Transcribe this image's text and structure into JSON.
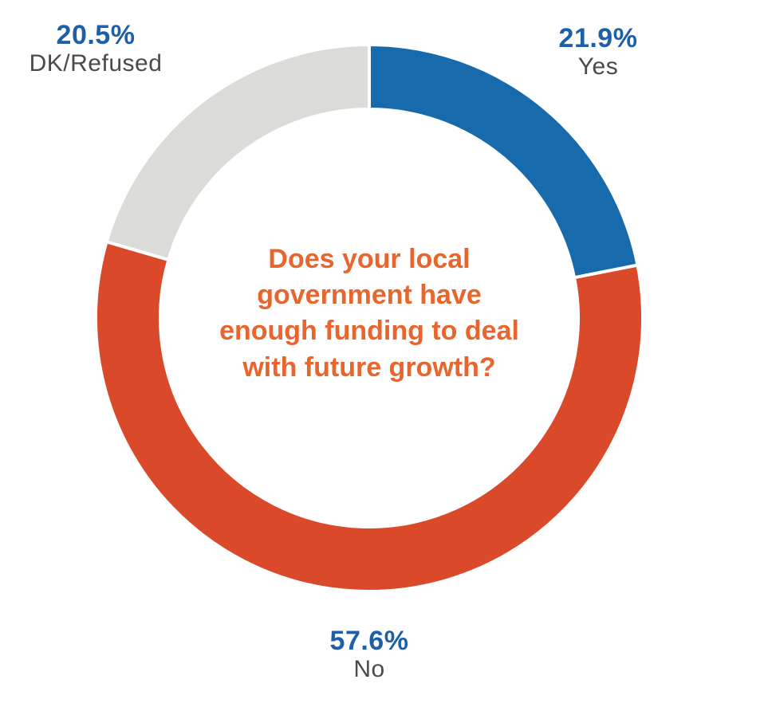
{
  "chart_data": {
    "type": "pie",
    "subtype": "donut",
    "center_text": "Does your local government have enough funding to deal with future growth?",
    "slices": [
      {
        "label": "Yes",
        "value": 21.9,
        "value_label": "21.9%",
        "color": "#176aab"
      },
      {
        "label": "No",
        "value": 57.6,
        "value_label": "57.6%",
        "color": "#d9492a"
      },
      {
        "label": "DK/Refused",
        "value": 20.5,
        "value_label": "20.5%",
        "color": "#dbdbd8"
      }
    ],
    "start_angle": "top (12 o'clock)",
    "direction": "clockwise"
  },
  "colors": {
    "value_label": "#1f5fa7",
    "category_label": "#4a4a4a",
    "center_text": "#e8652e",
    "separator": "#ffffff"
  }
}
